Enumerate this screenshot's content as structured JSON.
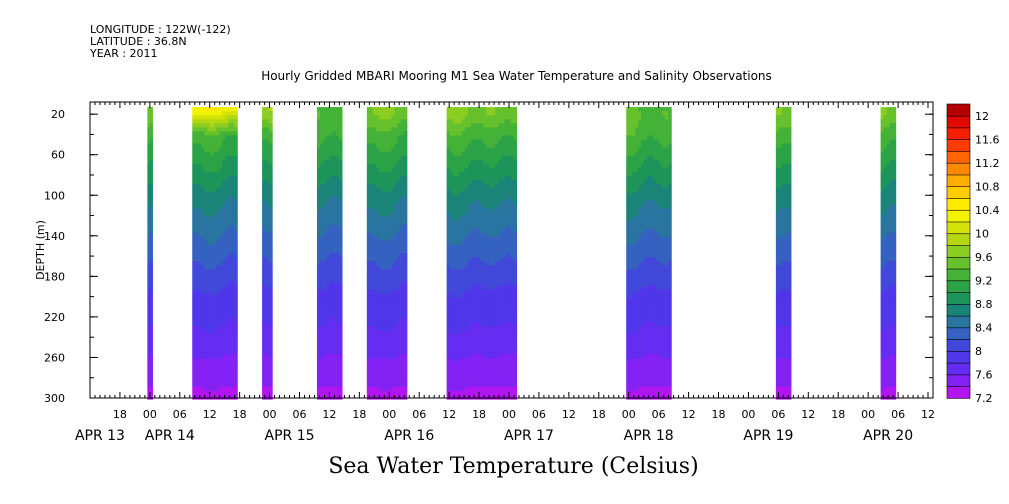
{
  "header": {
    "longitude": "LONGITUDE : 122W(-122)",
    "latitude": "LATITUDE : 36.8N",
    "year": "YEAR : 2011",
    "title": "Hourly Gridded MBARI Mooring M1 Sea Water Temperature and Salinity Observations"
  },
  "chart_data": {
    "type": "heatmap",
    "title": "Hourly Gridded MBARI Mooring M1 Sea Water Temperature and Salinity Observations",
    "xlabel": "",
    "ylabel": "DEPTH (m)",
    "colorbar_label": "Sea Water Temperature (Celsius)",
    "x_hour_ticks": [
      {
        "h": 18,
        "label": "18"
      },
      {
        "h": 24,
        "label": "00"
      },
      {
        "h": 30,
        "label": "06"
      },
      {
        "h": 36,
        "label": "12"
      },
      {
        "h": 42,
        "label": "18"
      },
      {
        "h": 48,
        "label": "00"
      },
      {
        "h": 54,
        "label": "06"
      },
      {
        "h": 60,
        "label": "12"
      },
      {
        "h": 66,
        "label": "18"
      },
      {
        "h": 72,
        "label": "00"
      },
      {
        "h": 78,
        "label": "06"
      },
      {
        "h": 84,
        "label": "12"
      },
      {
        "h": 90,
        "label": "18"
      },
      {
        "h": 96,
        "label": "00"
      },
      {
        "h": 102,
        "label": "06"
      },
      {
        "h": 108,
        "label": "12"
      },
      {
        "h": 114,
        "label": "18"
      },
      {
        "h": 120,
        "label": "00"
      },
      {
        "h": 126,
        "label": "06"
      },
      {
        "h": 132,
        "label": "12"
      },
      {
        "h": 138,
        "label": "18"
      },
      {
        "h": 144,
        "label": "00"
      },
      {
        "h": 150,
        "label": "06"
      },
      {
        "h": 156,
        "label": "12"
      },
      {
        "h": 162,
        "label": "18"
      },
      {
        "h": 168,
        "label": "00"
      },
      {
        "h": 174,
        "label": "06"
      },
      {
        "h": 180,
        "label": "12"
      }
    ],
    "date_labels": [
      {
        "h": 14,
        "label": "APR 13"
      },
      {
        "h": 28,
        "label": "APR 14"
      },
      {
        "h": 52,
        "label": "APR 15"
      },
      {
        "h": 76,
        "label": "APR 16"
      },
      {
        "h": 100,
        "label": "APR 17"
      },
      {
        "h": 124,
        "label": "APR 18"
      },
      {
        "h": 148,
        "label": "APR 19"
      },
      {
        "h": 172,
        "label": "APR 20"
      }
    ],
    "xlim": [
      12,
      181
    ],
    "ylim": [
      300,
      8
    ],
    "y_ticks": [
      20,
      60,
      100,
      140,
      180,
      220,
      260,
      300
    ],
    "colorbar_levels": [
      7.2,
      7.4,
      7.6,
      7.8,
      8,
      8.2,
      8.4,
      8.6,
      8.8,
      9,
      9.2,
      9.4,
      9.6,
      9.8,
      10,
      10.2,
      10.4,
      10.6,
      10.8,
      11,
      11.2,
      11.4,
      11.6,
      11.8,
      12,
      12.2
    ],
    "colorbar_labels": [
      "7.2",
      "7.6",
      "8",
      "8.4",
      "8.8",
      "9.2",
      "9.6",
      "10",
      "10.4",
      "10.8",
      "11.2",
      "11.6",
      "12"
    ],
    "data_segments": [
      {
        "start": 23.5,
        "end": 24.5,
        "surface": 9.6
      },
      {
        "start": 32.5,
        "end": 41.5,
        "surface": 10.2
      },
      {
        "start": 46.5,
        "end": 48.5,
        "surface": 9.8
      },
      {
        "start": 57.5,
        "end": 62.5,
        "surface": 9.4
      },
      {
        "start": 67.5,
        "end": 75.5,
        "surface": 9.6
      },
      {
        "start": 83.5,
        "end": 97.5,
        "surface": 9.6
      },
      {
        "start": 119.5,
        "end": 128.5,
        "surface": 9.4
      },
      {
        "start": 149.5,
        "end": 152.5,
        "surface": 9.6
      },
      {
        "start": 170.5,
        "end": 173.5,
        "surface": 9.6
      }
    ],
    "temperature_profile": {
      "depths": [
        20,
        40,
        60,
        80,
        100,
        120,
        140,
        160,
        180,
        200,
        220,
        240,
        260,
        280,
        300
      ],
      "temps": [
        9.6,
        9.3,
        9.1,
        8.9,
        8.7,
        8.55,
        8.4,
        8.25,
        8.1,
        7.95,
        7.85,
        7.75,
        7.6,
        7.45,
        7.35
      ]
    }
  }
}
